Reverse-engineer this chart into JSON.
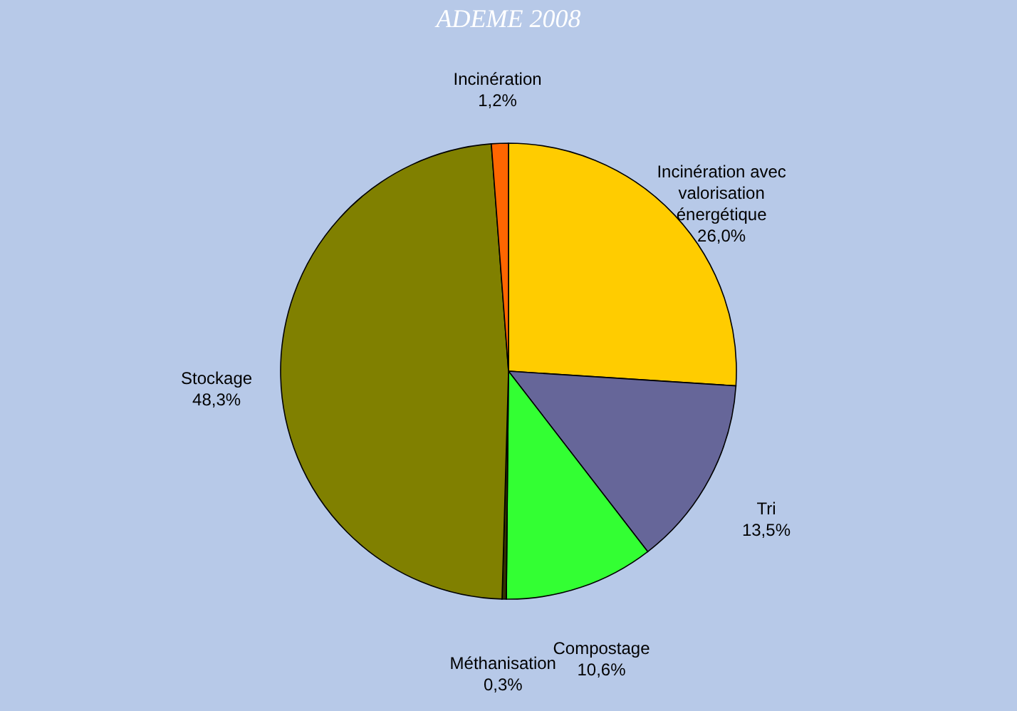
{
  "chart_data": {
    "type": "pie",
    "title": "ADEME 2008",
    "categories": [
      "Incinération avec valorisation énergétique",
      "Tri",
      "Compostage",
      "Méthanisation",
      "Stockage",
      "Incinération"
    ],
    "values": [
      26.0,
      13.5,
      10.6,
      0.3,
      48.3,
      1.2
    ],
    "colors": [
      "#ffcc00",
      "#666699",
      "#33ff33",
      "#333300",
      "#808000",
      "#ff6600"
    ],
    "value_labels": [
      "26,0%",
      "13,5%",
      "10,6%",
      "0,3%",
      "48,3%",
      "1,2%"
    ],
    "legend": false
  }
}
